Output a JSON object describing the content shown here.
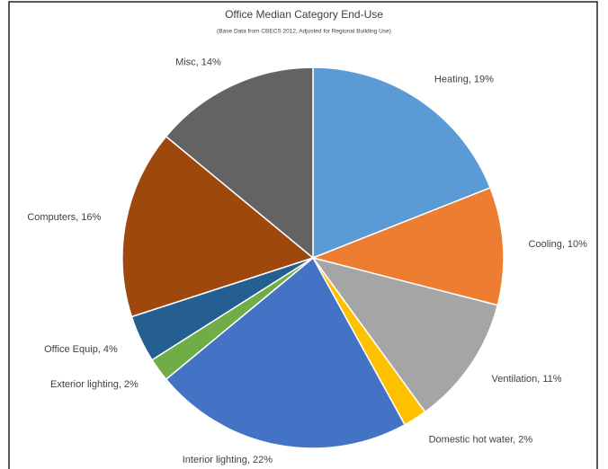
{
  "chart_data": {
    "type": "pie",
    "title": "Office Median Category End-Use",
    "subtitle": "(Base Data from CBECS 2012, Adjusted for Regional Building Use)",
    "values": [
      19,
      10,
      11,
      2,
      22,
      2,
      4,
      16,
      14
    ],
    "value_labels": [
      "Heating, 19%",
      "Cooling, 10%",
      "Ventilation, 11%",
      "Domestic hot water, 2%",
      "Interior lighting, 22%",
      "Exterior lighting, 2%",
      "Office Equip, 4%",
      "Computers, 16%",
      "Misc, 14%"
    ],
    "colors": [
      "#5b9bd5",
      "#ed7d31",
      "#a5a5a5",
      "#ffc000",
      "#4472c4",
      "#70ad47",
      "#255e91",
      "#9e480e",
      "#636363"
    ]
  }
}
